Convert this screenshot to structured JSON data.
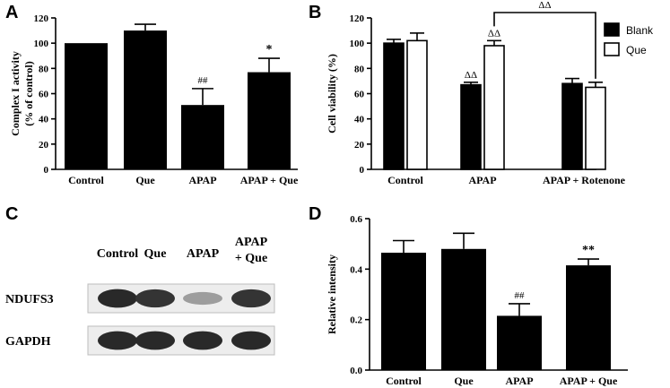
{
  "panels": {
    "A": "A",
    "B": "B",
    "C": "C",
    "D": "D"
  },
  "chart_data": [
    {
      "panel": "A",
      "type": "bar",
      "categories": [
        "Control",
        "Que",
        "APAP",
        "APAP + Que"
      ],
      "values": [
        100,
        110,
        51,
        77
      ],
      "errors": [
        0,
        5,
        13,
        11
      ],
      "annotations": [
        "",
        "",
        "##",
        "*"
      ],
      "ylabel": [
        "Complex I activity",
        "(% of control)"
      ],
      "ylim": [
        0,
        120
      ],
      "yticks": [
        0,
        20,
        40,
        60,
        80,
        100,
        120
      ],
      "color": "#000000"
    },
    {
      "panel": "B",
      "type": "bar",
      "categories": [
        "Control",
        "APAP",
        "APAP + Rotenone"
      ],
      "series": [
        {
          "name": "Blank",
          "values": [
            100,
            67,
            68
          ],
          "errors": [
            3,
            2,
            4
          ],
          "annotations": [
            "",
            "ΔΔ",
            ""
          ],
          "fill": "#000000"
        },
        {
          "name": "Que",
          "values": [
            102,
            98,
            65
          ],
          "errors": [
            6,
            4,
            4
          ],
          "annotations": [
            "",
            "ΔΔ",
            ""
          ],
          "fill": "#ffffff"
        }
      ],
      "bracket_annotation": "ΔΔ",
      "ylabel": [
        "Cell viability (%)"
      ],
      "ylim": [
        0,
        120
      ],
      "yticks": [
        0,
        20,
        40,
        60,
        80,
        100,
        120
      ],
      "legend_position": "top-right"
    },
    {
      "panel": "D",
      "type": "bar",
      "categories": [
        "Control",
        "Que",
        "APAP",
        "APAP + Que"
      ],
      "values": [
        0.465,
        0.48,
        0.215,
        0.415
      ],
      "errors": [
        0.048,
        0.062,
        0.048,
        0.025
      ],
      "annotations": [
        "",
        "",
        "##",
        "**"
      ],
      "ylabel": [
        "Relative intensity"
      ],
      "ylim": [
        0,
        0.6
      ],
      "yticks": [
        "0.0",
        "0.2",
        "0.4",
        "0.6"
      ],
      "color": "#000000"
    }
  ],
  "blot": {
    "lanes": [
      "Control",
      "Que",
      "APAP",
      "APAP\n+ Que"
    ],
    "rows": [
      {
        "label": "NDUFS3",
        "intensity": [
          0.9,
          0.85,
          0.35,
          0.85
        ]
      },
      {
        "label": "GAPDH",
        "intensity": [
          0.9,
          0.9,
          0.9,
          0.9
        ]
      }
    ]
  }
}
